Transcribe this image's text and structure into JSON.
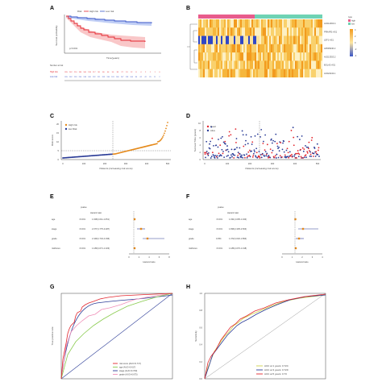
{
  "panels": {
    "A": {
      "label": "A",
      "legend_title": "Risk",
      "legend_high": "High risk",
      "legend_low": "Low risk",
      "ylabel": "Survival probability",
      "xlabel": "Time(years)",
      "pvalue": "p<0.001",
      "risk_high": "High risk",
      "risk_low": "Low risk",
      "risk_table_title": "Number at risk"
    },
    "B": {
      "label": "B",
      "genes": [
        "AC012363.4",
        "PRKAR1-AS1",
        "LEF1-AS1",
        "AP005236.2",
        "AC013353.2",
        "BOLA2-AS1",
        "AC022244.1"
      ],
      "legend_type_title": "type",
      "legend_type_high": "high",
      "legend_type_low": "low",
      "scale_top": "4",
      "scale_mid": "2",
      "scale_zero": "0",
      "scale_neg": "-2",
      "scale_bottom": "-4"
    },
    "C": {
      "label": "C",
      "legend_high": "High risk",
      "legend_low": "low Risk",
      "ylabel": "Risk score",
      "xlabel": "Patients (increasing risk score)",
      "xticks": [
        "0",
        "100",
        "200",
        "300",
        "400",
        "500"
      ],
      "yticks": [
        "0",
        "5",
        "10",
        "15",
        "20"
      ]
    },
    "D": {
      "label": "D",
      "legend_dead": "Dead",
      "legend_alive": "Alive",
      "ylabel": "Survival Time (years)",
      "xlabel": "Patients (increasing risk score)",
      "xticks": [
        "0",
        "100",
        "200",
        "300",
        "400",
        "500"
      ],
      "yticks": [
        "0",
        "2",
        "4",
        "6",
        "8",
        "10"
      ]
    },
    "E": {
      "label": "E",
      "col_pvalue": "pvalue",
      "col_hr": "Hazard ratio",
      "xlabel": "Hazard ratio",
      "xticks": [
        "0",
        "2",
        "4",
        "6",
        "8"
      ],
      "rows": [
        {
          "name": "age",
          "p": "<0.001",
          "hr": "1.028(1.011-1.051)"
        },
        {
          "name": "stage",
          "p": "<0.001",
          "hr": "2.377(1.775-3.487)"
        },
        {
          "name": "grade",
          "p": "<0.001",
          "hr": "2.449(1.743-4.036)"
        },
        {
          "name": "riskScore",
          "p": "<0.001",
          "hr": "1.189(1.071-1.323)"
        }
      ]
    },
    "F": {
      "label": "F",
      "col_pvalue": "pvalue",
      "col_hr": "Hazard ratio",
      "xlabel": "Hazard ratio",
      "xticks": [
        "0",
        "1",
        "2",
        "3",
        "4"
      ],
      "rows": [
        {
          "name": "age",
          "p": "<0.001",
          "hr": "1.031(1.005-1.043)"
        },
        {
          "name": "stage",
          "p": "<0.001",
          "hr": "1.836(1.335-2.503)"
        },
        {
          "name": "grade",
          "p": "0.054",
          "hr": "1.372(1.032-1.893)"
        },
        {
          "name": "riskScore",
          "p": "<0.001",
          "hr": "1.186(1.070-1.318)"
        }
      ]
    },
    "G": {
      "label": "G",
      "ylabel": "True positive rate",
      "xlabel": "False positive rate",
      "xticks": [
        "0.0",
        "0.2",
        "0.4",
        "0.6",
        "0.8",
        "1.0"
      ],
      "yticks": [
        "0.0",
        "0.2",
        "0.4",
        "0.6",
        "0.8",
        "1.0"
      ],
      "legend": [
        {
          "text": "risk score (AUC=0.717)",
          "color": "#e3262e"
        },
        {
          "text": "age (AUC=0.617)",
          "color": "#8acb4f"
        },
        {
          "text": "stage (AUC=0.709)",
          "color": "#2a3b96"
        },
        {
          "text": "grade (AUC=0.675)",
          "color": "#f08fb8"
        }
      ]
    },
    "H": {
      "label": "H",
      "ylabel": "Sensitivity",
      "xlabel": "1-Specificity",
      "xticks": [
        "0.0",
        "0.2",
        "0.4",
        "0.6",
        "0.8",
        "1.0"
      ],
      "yticks": [
        "0.0",
        "0.2",
        "0.4",
        "0.6",
        "0.8",
        "1.0"
      ],
      "legend": [
        {
          "text": "AUC at 1 years: 0.724",
          "color": "#cfd24a"
        },
        {
          "text": "AUC at 3 years: 0.729",
          "color": "#2a3b96"
        },
        {
          "text": "AUC at 5 years: 0.73",
          "color": "#e3262e"
        }
      ]
    }
  },
  "colors": {
    "high": "#e3262e",
    "low": "#3a56c8",
    "orange": "#e58a1c",
    "blue": "#2a3b96",
    "heat_high": "#f3a41e",
    "heat_low": "#fbe9a0"
  }
}
